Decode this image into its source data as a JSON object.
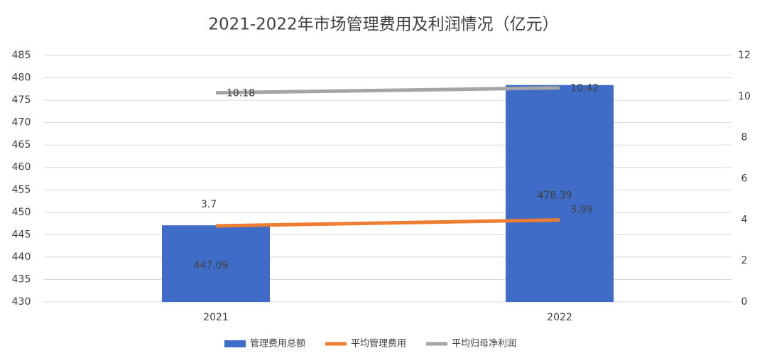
{
  "chart_data": {
    "type": "bar",
    "title": "2021-2022年市场管理费用及利润情况（亿元）",
    "categories": [
      "2021",
      "2022"
    ],
    "series": [
      {
        "name": "管理费用总额",
        "type": "bar",
        "color": "#3f6cc6",
        "values": [
          447.09,
          478.39
        ]
      },
      {
        "name": "平均管理费用",
        "type": "line",
        "axis": "y2",
        "color": "#ed7d31",
        "values": [
          3.7,
          3.99
        ]
      },
      {
        "name": "平均归母净利润",
        "type": "line",
        "axis": "y2",
        "color": "#a5a5a5",
        "values": [
          10.18,
          10.42
        ]
      }
    ],
    "ylim": [
      430,
      485
    ],
    "yticks": [
      430,
      435,
      440,
      445,
      450,
      455,
      460,
      465,
      470,
      475,
      480,
      485
    ],
    "y2lim": [
      0,
      12
    ],
    "y2ticks": [
      0,
      2,
      4,
      6,
      8,
      10,
      12
    ],
    "grid": true,
    "legend": "bottom"
  }
}
